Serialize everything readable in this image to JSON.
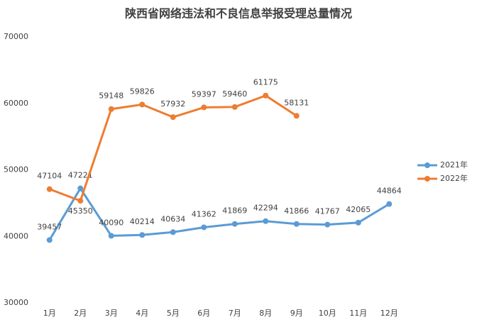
{
  "chart_data": {
    "type": "line",
    "title": "陕西省网络违法和不良信息举报受理总量情况",
    "categories": [
      "1月",
      "2月",
      "3月",
      "4月",
      "5月",
      "6月",
      "7月",
      "8月",
      "9月",
      "10月",
      "11月",
      "12月"
    ],
    "series": [
      {
        "name": "2021年",
        "color": "#5b9bd5",
        "values": [
          39457,
          47221,
          40090,
          40214,
          40634,
          41362,
          41869,
          42294,
          41866,
          41767,
          42065,
          44864
        ]
      },
      {
        "name": "2022年",
        "color": "#ed7d31",
        "values": [
          47104,
          45350,
          59148,
          59826,
          57932,
          59397,
          59460,
          61175,
          58131,
          null,
          null,
          null
        ]
      }
    ],
    "ylim": [
      30000,
      70000
    ],
    "yticks": [
      30000,
      40000,
      50000,
      60000,
      70000
    ],
    "grid": false,
    "legend": "right"
  }
}
